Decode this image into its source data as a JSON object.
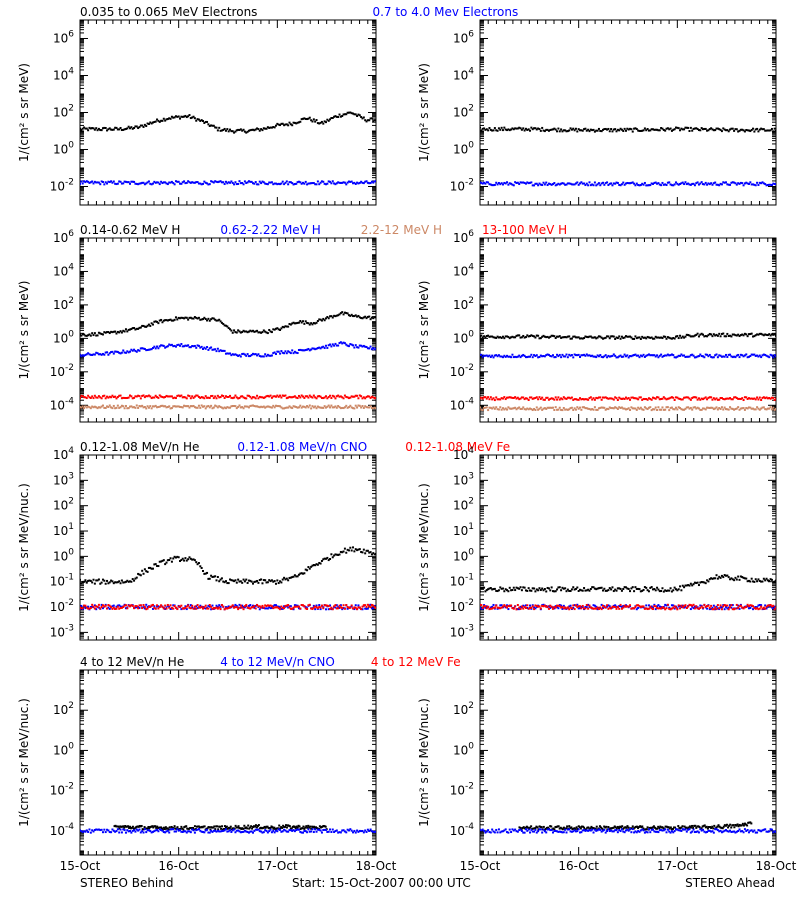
{
  "figure": {
    "footer": {
      "left": "STEREO Behind",
      "center": "Start: 15-Oct-2007 00:00 UTC",
      "right": "STEREO Ahead"
    },
    "x_ticks": [
      "15-Oct",
      "16-Oct",
      "17-Oct",
      "18-Oct"
    ]
  },
  "chart_data": [
    {
      "type": "scatter",
      "panel": "electrons-behind",
      "title_segments": [
        {
          "text": "0.035 to 0.065 MeV Electrons",
          "color": "#000000"
        },
        {
          "text": "0.7 to 4.0 Mev Electrons",
          "color": "#0000ff"
        }
      ],
      "ylabel": "1/(cm² s sr MeV)",
      "yscale": "log",
      "ylim_exp": [
        -3,
        7
      ],
      "yticks_exp": [
        -2,
        0,
        2,
        4,
        6
      ],
      "xlim_days": [
        0,
        3
      ],
      "series": [
        {
          "name": "0.035 to 0.065 MeV Electrons",
          "color": "#000000",
          "x": [
            0,
            0.2,
            0.4,
            0.6,
            0.75,
            0.9,
            1.1,
            1.25,
            1.4,
            1.55,
            1.7,
            1.85,
            2.0,
            2.15,
            2.3,
            2.45,
            2.6,
            2.75,
            2.9,
            3.0
          ],
          "log10_y": [
            1.1,
            1.1,
            1.1,
            1.2,
            1.5,
            1.7,
            1.8,
            1.5,
            1.1,
            1.0,
            1.0,
            1.1,
            1.3,
            1.4,
            1.7,
            1.4,
            1.8,
            2.0,
            1.6,
            1.6
          ]
        },
        {
          "name": "0.7 to 4.0 Mev Electrons",
          "color": "#0000ff",
          "x": [
            0,
            0.5,
            1.0,
            1.5,
            2.0,
            2.5,
            3.0
          ],
          "log10_y": [
            -1.8,
            -1.8,
            -1.8,
            -1.8,
            -1.8,
            -1.8,
            -1.8
          ]
        }
      ]
    },
    {
      "type": "scatter",
      "panel": "electrons-ahead",
      "ylabel": "1/(cm² s sr MeV)",
      "yscale": "log",
      "ylim_exp": [
        -3,
        7
      ],
      "yticks_exp": [
        -2,
        0,
        2,
        4,
        6
      ],
      "xlim_days": [
        0,
        3
      ],
      "series": [
        {
          "name": "0.035 to 0.065 MeV Electrons",
          "color": "#000000",
          "x": [
            0,
            0.5,
            1.0,
            1.5,
            2.0,
            2.5,
            3.0
          ],
          "log10_y": [
            1.1,
            1.1,
            1.05,
            1.05,
            1.1,
            1.05,
            1.05
          ]
        },
        {
          "name": "0.7 to 4.0 Mev Electrons",
          "color": "#0000ff",
          "x": [
            0,
            0.5,
            1.0,
            1.5,
            2.0,
            2.5,
            3.0
          ],
          "log10_y": [
            -1.85,
            -1.85,
            -1.85,
            -1.85,
            -1.85,
            -1.85,
            -1.85
          ]
        }
      ]
    },
    {
      "type": "scatter",
      "panel": "protons-behind",
      "title_segments": [
        {
          "text": "0.14-0.62 MeV H",
          "color": "#000000"
        },
        {
          "text": "0.62-2.22 MeV H",
          "color": "#0000ff"
        },
        {
          "text": "2.2-12 MeV H",
          "color": "#cc8866"
        },
        {
          "text": "13-100 MeV H",
          "color": "#ff0000"
        }
      ],
      "ylabel": "1/(cm² s sr MeV)",
      "yscale": "log",
      "ylim_exp": [
        -5,
        6
      ],
      "yticks_exp": [
        -4,
        -2,
        0,
        2,
        4,
        6
      ],
      "xlim_days": [
        0,
        3
      ],
      "series": [
        {
          "name": "0.14-0.62 MeV H",
          "color": "#000000",
          "x": [
            0,
            0.3,
            0.6,
            0.8,
            1.0,
            1.2,
            1.4,
            1.55,
            1.7,
            1.9,
            2.05,
            2.2,
            2.35,
            2.5,
            2.65,
            2.8,
            3.0
          ],
          "log10_y": [
            0.2,
            0.3,
            0.6,
            1.0,
            1.2,
            1.2,
            1.1,
            0.4,
            0.4,
            0.4,
            0.6,
            1.0,
            0.9,
            1.2,
            1.5,
            1.3,
            1.2
          ]
        },
        {
          "name": "0.62-2.22 MeV H",
          "color": "#0000ff",
          "x": [
            0,
            0.3,
            0.6,
            0.8,
            1.0,
            1.2,
            1.4,
            1.55,
            1.7,
            1.9,
            2.05,
            2.2,
            2.35,
            2.5,
            2.65,
            2.8,
            3.0
          ],
          "log10_y": [
            -1.0,
            -0.9,
            -0.7,
            -0.5,
            -0.4,
            -0.5,
            -0.7,
            -1.0,
            -1.0,
            -1.0,
            -0.8,
            -0.8,
            -0.6,
            -0.5,
            -0.3,
            -0.5,
            -0.6
          ]
        },
        {
          "name": "2.2-12 MeV H",
          "color": "#cc8866",
          "x": [
            0,
            1.0,
            2.0,
            3.0
          ],
          "log10_y": [
            -4.1,
            -4.1,
            -4.1,
            -4.1
          ]
        },
        {
          "name": "13-100 MeV H",
          "color": "#ff0000",
          "x": [
            0,
            1.0,
            2.0,
            3.0
          ],
          "log10_y": [
            -3.5,
            -3.5,
            -3.5,
            -3.5
          ]
        }
      ]
    },
    {
      "type": "scatter",
      "panel": "protons-ahead",
      "ylabel": "1/(cm² s sr MeV)",
      "yscale": "log",
      "ylim_exp": [
        -5,
        6
      ],
      "yticks_exp": [
        -4,
        -2,
        0,
        2,
        4,
        6
      ],
      "xlim_days": [
        0,
        3
      ],
      "series": [
        {
          "name": "0.14-0.62 MeV H",
          "color": "#000000",
          "x": [
            0,
            0.5,
            1.0,
            1.5,
            2.0,
            2.2,
            2.5,
            3.0
          ],
          "log10_y": [
            0.1,
            0.1,
            0.05,
            0.05,
            0.05,
            0.2,
            0.2,
            0.2
          ]
        },
        {
          "name": "0.62-2.22 MeV H",
          "color": "#0000ff",
          "x": [
            0,
            0.5,
            1.0,
            1.5,
            2.0,
            2.5,
            3.0
          ],
          "log10_y": [
            -1.05,
            -1.05,
            -1.05,
            -1.05,
            -1.05,
            -1.05,
            -1.05
          ]
        },
        {
          "name": "2.2-12 MeV H",
          "color": "#cc8866",
          "x": [
            0,
            1.0,
            2.0,
            3.0
          ],
          "log10_y": [
            -4.2,
            -4.2,
            -4.2,
            -4.2
          ]
        },
        {
          "name": "13-100 MeV H",
          "color": "#ff0000",
          "x": [
            0,
            1.0,
            2.0,
            3.0
          ],
          "log10_y": [
            -3.6,
            -3.6,
            -3.6,
            -3.6
          ]
        }
      ]
    },
    {
      "type": "scatter",
      "panel": "heavy-ions-low-behind",
      "title_segments": [
        {
          "text": "0.12-1.08 MeV/n He",
          "color": "#000000"
        },
        {
          "text": "0.12-1.08 MeV/n CNO",
          "color": "#0000ff"
        },
        {
          "text": "0.12-1.08 MeV Fe",
          "color": "#ff0000"
        }
      ],
      "ylabel": "1/(cm² s sr MeV/nuc.)",
      "yscale": "log",
      "ylim_exp": [
        -3.3,
        4
      ],
      "yticks_exp": [
        -3,
        -2,
        -1,
        0,
        1,
        2,
        3,
        4
      ],
      "xlim_days": [
        0,
        3
      ],
      "series": [
        {
          "name": "0.12-1.08 MeV/n He",
          "color": "#000000",
          "x": [
            0,
            0.35,
            0.5,
            0.65,
            0.8,
            0.95,
            1.1,
            1.2,
            1.3,
            1.5,
            1.75,
            2.0,
            2.2,
            2.35,
            2.5,
            2.65,
            2.8,
            3.0
          ],
          "log10_y": [
            -1.0,
            -1.0,
            -1.0,
            -0.6,
            -0.3,
            -0.1,
            -0.1,
            -0.3,
            -0.8,
            -1.0,
            -1.0,
            -1.0,
            -0.8,
            -0.4,
            -0.1,
            0.2,
            0.3,
            0.1
          ]
        },
        {
          "name": "0.12-1.08 MeV/n CNO",
          "color": "#0000ff",
          "x": [
            0,
            1.0,
            2.0,
            3.0
          ],
          "log10_y": [
            -2.0,
            -2.0,
            -2.0,
            -2.0
          ]
        },
        {
          "name": "0.12-1.08 MeV Fe",
          "color": "#ff0000",
          "x": [
            0,
            1.0,
            2.0,
            3.0
          ],
          "log10_y": [
            -2.0,
            -2.0,
            -2.0,
            -2.0
          ]
        }
      ]
    },
    {
      "type": "scatter",
      "panel": "heavy-ions-low-ahead",
      "ylabel": "1/(cm² s sr MeV/nuc.)",
      "yscale": "log",
      "ylim_exp": [
        -3.3,
        4
      ],
      "yticks_exp": [
        -3,
        -2,
        -1,
        0,
        1,
        2,
        3,
        4
      ],
      "xlim_days": [
        0,
        3
      ],
      "series": [
        {
          "name": "0.12-1.08 MeV/n He",
          "color": "#000000",
          "x": [
            0,
            0.5,
            1.0,
            1.5,
            2.0,
            2.2,
            2.4,
            2.7,
            3.0
          ],
          "log10_y": [
            -1.3,
            -1.3,
            -1.3,
            -1.3,
            -1.3,
            -1.1,
            -0.8,
            -0.9,
            -1.0
          ]
        },
        {
          "name": "0.12-1.08 MeV/n CNO",
          "color": "#0000ff",
          "x": [
            0,
            1.0,
            2.0,
            3.0
          ],
          "log10_y": [
            -2.0,
            -2.0,
            -2.0,
            -2.0
          ]
        },
        {
          "name": "0.12-1.08 MeV Fe",
          "color": "#ff0000",
          "x": [
            0,
            1.0,
            2.0,
            3.0
          ],
          "log10_y": [
            -2.0,
            -2.0,
            -2.0,
            -2.0
          ]
        }
      ]
    },
    {
      "type": "scatter",
      "panel": "heavy-ions-high-behind",
      "title_segments": [
        {
          "text": "4 to 12 MeV/n He",
          "color": "#000000"
        },
        {
          "text": "4 to 12 MeV/n CNO",
          "color": "#0000ff"
        },
        {
          "text": "4 to 12 MeV Fe",
          "color": "#ff0000"
        }
      ],
      "ylabel": "1/(cm² s sr MeV/nuc.)",
      "yscale": "log",
      "ylim_exp": [
        -5.2,
        4
      ],
      "yticks_exp": [
        -4,
        -2,
        0,
        2
      ],
      "xlim_days": [
        0,
        3
      ],
      "series": [
        {
          "name": "4 to 12 MeV/n He",
          "color": "#000000",
          "x": [
            0.35,
            0.75,
            1.5,
            1.75,
            1.85,
            1.95,
            2.05,
            2.5
          ],
          "log10_y": [
            -3.8,
            -3.85,
            -3.85,
            -3.8,
            -3.8,
            -3.85,
            -3.8,
            -3.85
          ]
        },
        {
          "name": "4 to 12 MeV/n CNO",
          "color": "#0000ff",
          "x": [
            0,
            1.0,
            2.0,
            3.0
          ],
          "log10_y": [
            -4.0,
            -4.0,
            -4.0,
            -4.0
          ]
        }
      ]
    },
    {
      "type": "scatter",
      "panel": "heavy-ions-high-ahead",
      "ylabel": "1/(cm² s sr MeV/nuc.)",
      "yscale": "log",
      "ylim_exp": [
        -5.2,
        4
      ],
      "yticks_exp": [
        -4,
        -2,
        0,
        2
      ],
      "xlim_days": [
        0,
        3
      ],
      "series": [
        {
          "name": "4 to 12 MeV/n He",
          "color": "#000000",
          "x": [
            0.4,
            2.05,
            2.4,
            2.62,
            2.75
          ],
          "log10_y": [
            -3.85,
            -3.85,
            -3.8,
            -3.75,
            -3.6
          ]
        },
        {
          "name": "4 to 12 MeV/n CNO",
          "color": "#0000ff",
          "x": [
            0,
            1.0,
            2.0,
            3.0
          ],
          "log10_y": [
            -4.0,
            -4.0,
            -4.0,
            -4.0
          ]
        }
      ]
    }
  ]
}
